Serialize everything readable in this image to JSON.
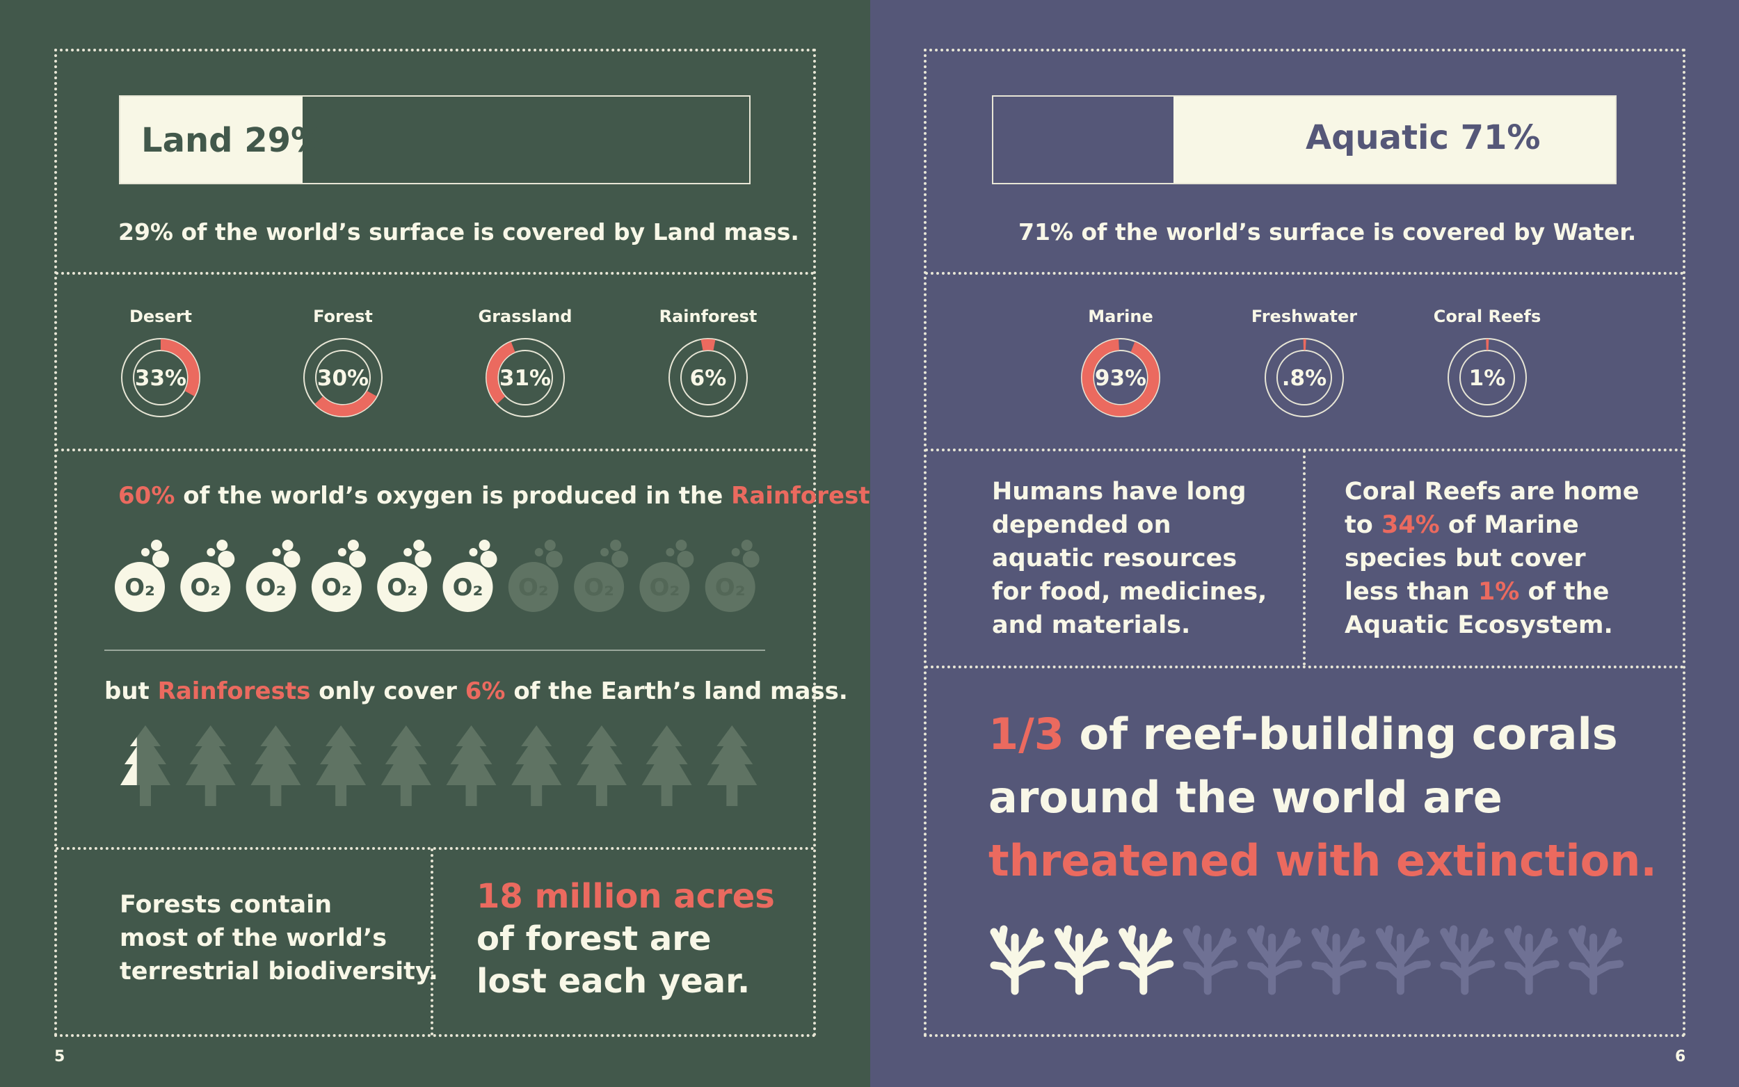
{
  "colors": {
    "land_bg": "#42584b",
    "aquatic_bg": "#555778",
    "cream": "#f8f7e6",
    "accent_red": "#eb6a5f",
    "land_faded": "#5f7363",
    "aquatic_faded": "#6f7194"
  },
  "land": {
    "bar_label": "Land 29%",
    "bar_fraction": 0.29,
    "summary": "29% of the world’s surface is covered by Land mass.",
    "biomes": [
      {
        "label": "Desert",
        "value_text": "33%",
        "fraction": 0.33,
        "arc_start": 0
      },
      {
        "label": "Forest",
        "value_text": "30%",
        "fraction": 0.3,
        "arc_start": 0.33
      },
      {
        "label": "Grassland",
        "value_text": "31%",
        "fraction": 0.31,
        "arc_start": 0.63
      },
      {
        "label": "Rainforest",
        "value_text": "6%",
        "fraction": 0.06,
        "arc_start": 0.97
      }
    ],
    "oxygen": {
      "pct": "60%",
      "text_mid": " of the world’s oxygen is produced in the ",
      "place": "Rainforest.",
      "icon_glyph": "O₂",
      "icon_total": 10,
      "icon_filled": 6
    },
    "rainforest_cover": {
      "prefix": "but ",
      "word": "Rainforests",
      "mid": " only cover ",
      "pct": "6%",
      "suffix": " of the Earth’s land mass.",
      "icon_total": 10,
      "icon_filled_fraction": 0.06
    },
    "biodiversity": {
      "line1": "Forests contain",
      "line2": "most of the world’s",
      "line3": "terrestrial biodiversity."
    },
    "forest_loss": {
      "line1": "18 million acres",
      "line2": "of forest are",
      "line3": "lost each year."
    },
    "page_number": "5"
  },
  "aquatic": {
    "bar_label": "Aquatic 71%",
    "bar_fraction": 0.71,
    "summary": "71% of the world’s surface is covered by Water.",
    "biomes": [
      {
        "label": "Marine",
        "value_text": "93%",
        "fraction": 0.93,
        "arc_start": 0.06
      },
      {
        "label": "Freshwater",
        "value_text": ".8%",
        "fraction": 0.008,
        "arc_start": 0.996
      },
      {
        "label": "Coral Reefs",
        "value_text": "1%",
        "fraction": 0.01,
        "arc_start": 0.995
      }
    ],
    "humans": {
      "line1": "Humans have long",
      "line2": "depended on",
      "line3": "aquatic resources",
      "line4": "for food, medicines,",
      "line5": "and materials."
    },
    "coral_home": {
      "line1": "Coral Reefs are home",
      "line2a": "to ",
      "line2b": "34%",
      "line2c": " of Marine",
      "line3": "species but cover",
      "line4a": "less than ",
      "line4b": "1%",
      "line4c": " of the",
      "line5": "Aquatic Ecosystem."
    },
    "threat": {
      "fraction_text": "1/3",
      "line1_rest": " of reef-building corals",
      "line2": "around the world are",
      "line3": "threatened with extinction."
    },
    "coral_icons": {
      "total": 10,
      "filled": 3
    },
    "page_number": "6"
  }
}
